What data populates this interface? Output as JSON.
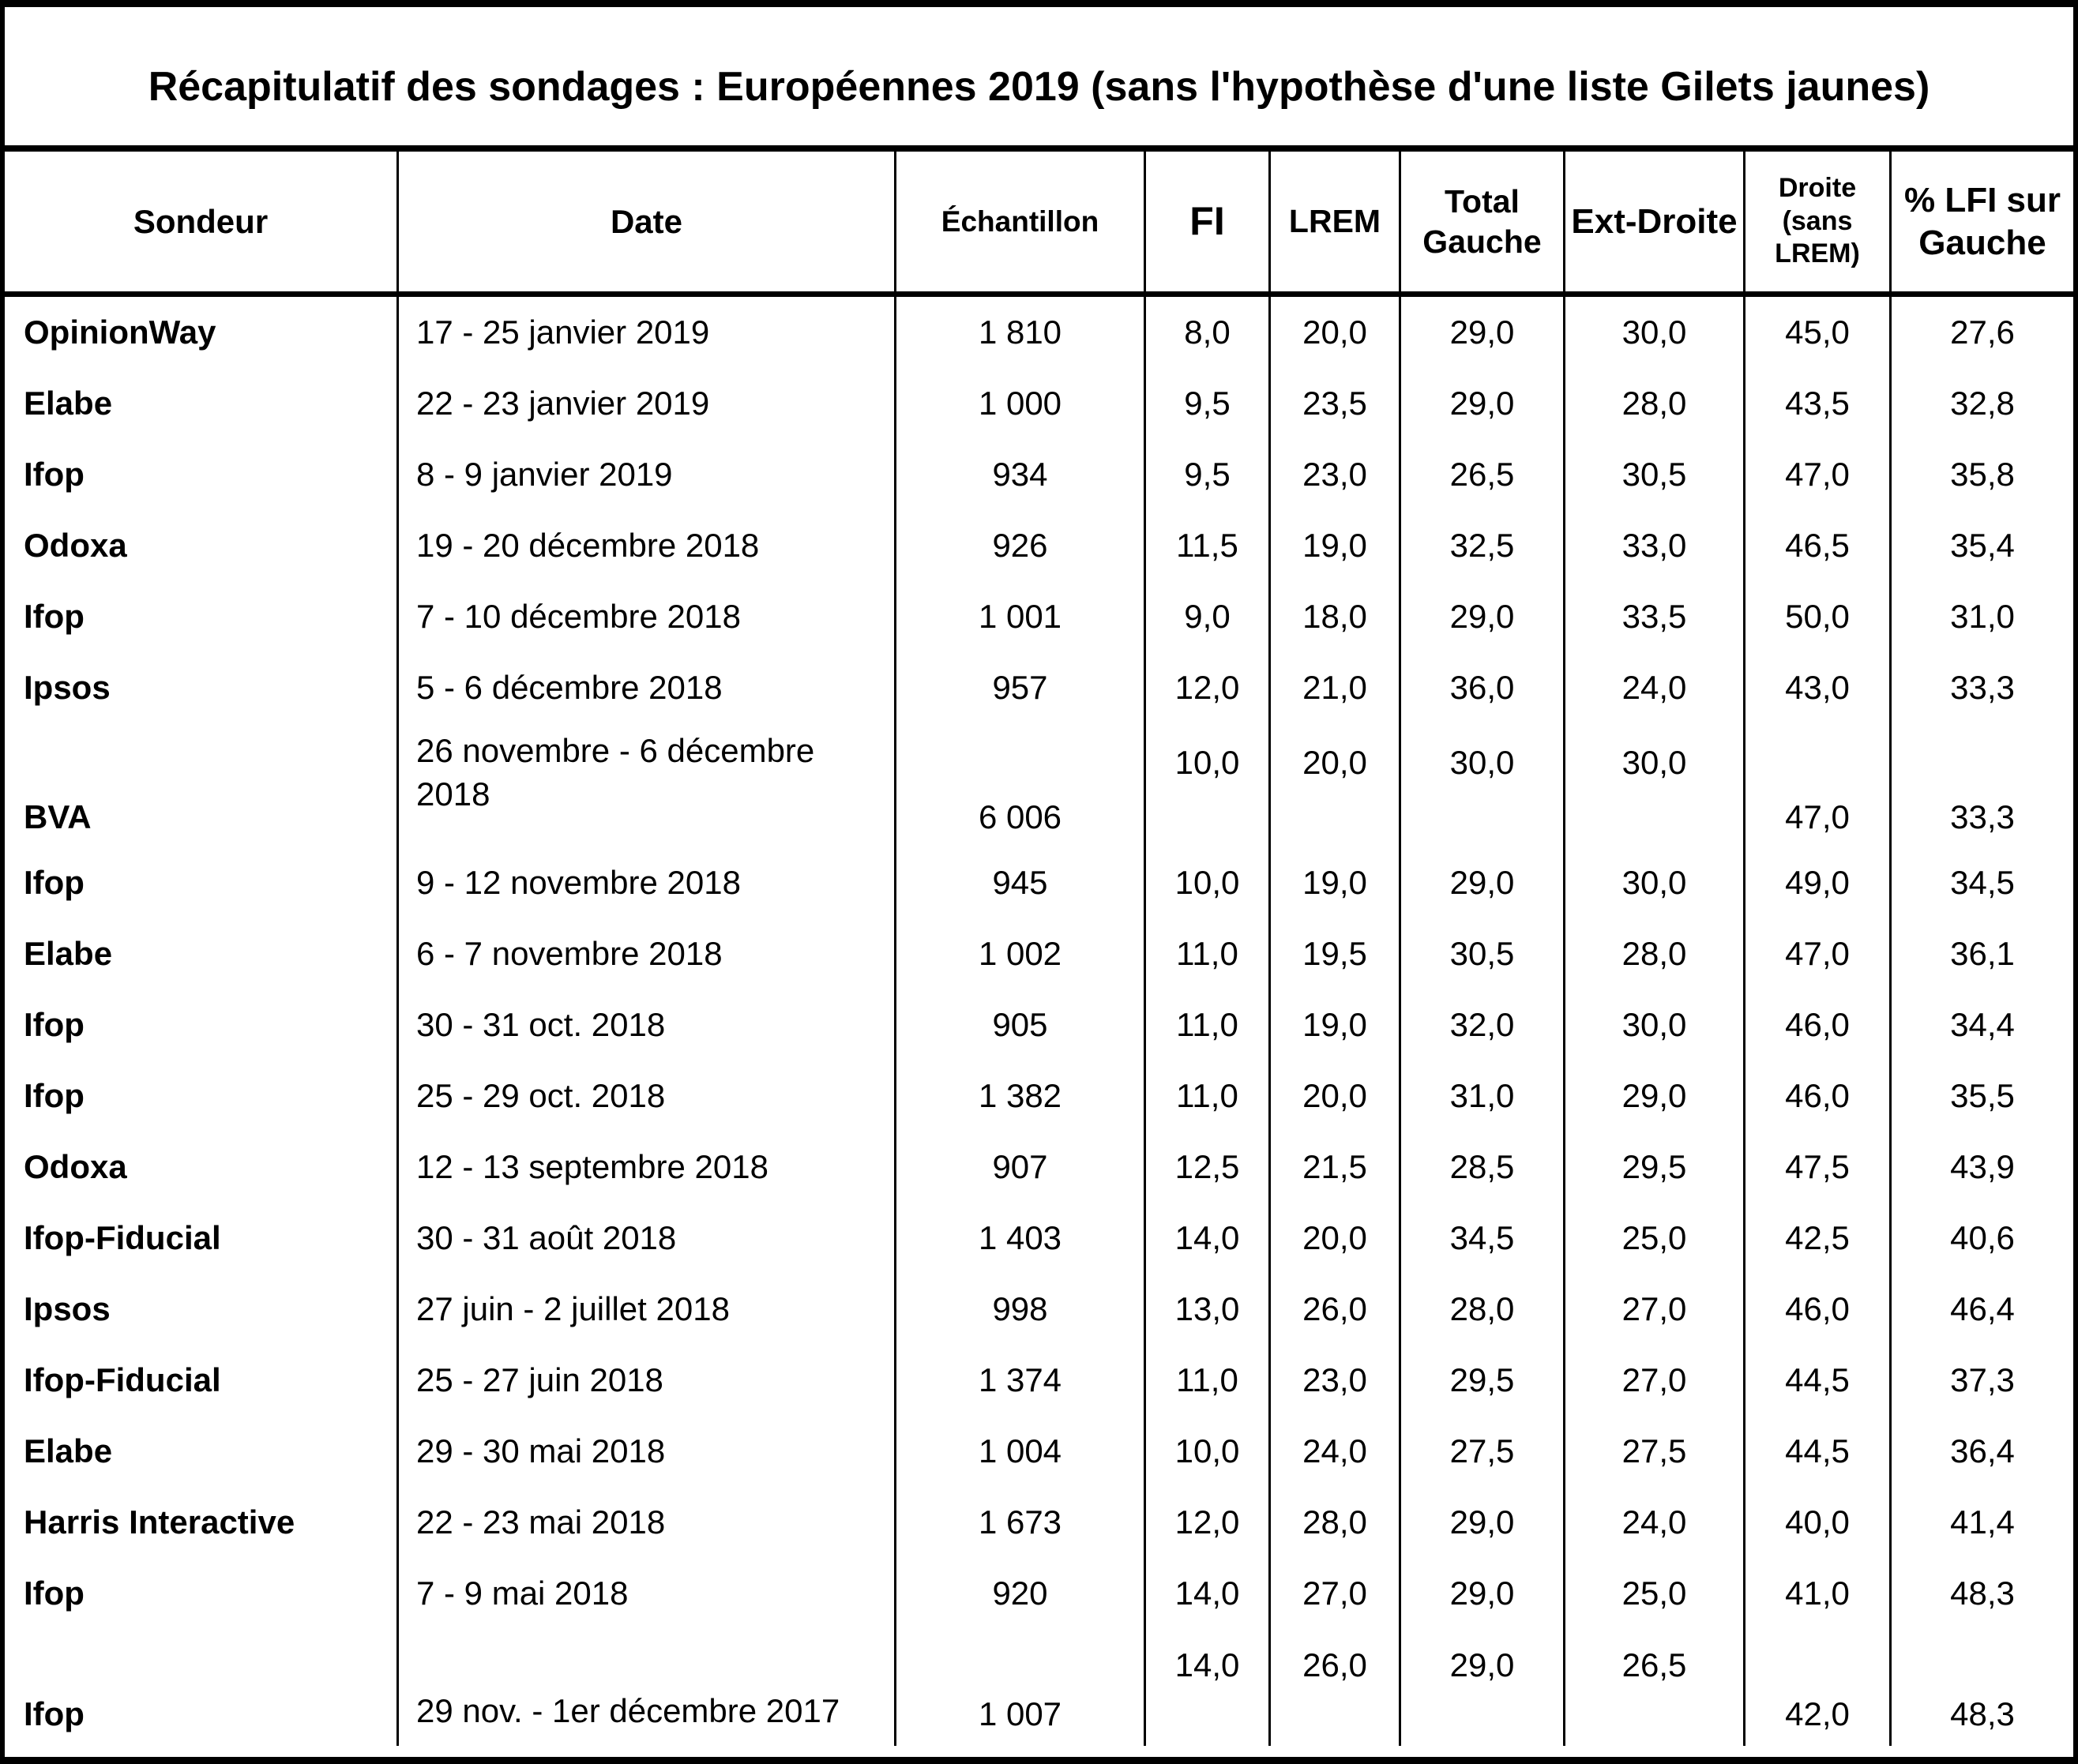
{
  "title": "Récapitulatif des sondages : Européennes 2019 (sans l'hypothèse d'une liste Gilets jaunes)",
  "colors": {
    "background": "#ffffff",
    "text": "#000000",
    "border": "#000000"
  },
  "table": {
    "columns": [
      {
        "key": "sondeur",
        "label": "Sondeur"
      },
      {
        "key": "date",
        "label": "Date"
      },
      {
        "key": "echantillon",
        "label": "Échantillon"
      },
      {
        "key": "fi",
        "label": "FI"
      },
      {
        "key": "lrem",
        "label": "LREM"
      },
      {
        "key": "total_gauche",
        "label": "Total\nGauche"
      },
      {
        "key": "ext_droite",
        "label": "Ext-Droite"
      },
      {
        "key": "droite_sans_lrem",
        "label": "Droite\n(sans\nLREM)"
      },
      {
        "key": "pct_lfi_sur_gauche",
        "label": "% LFI sur\nGauche"
      }
    ],
    "rows": [
      {
        "sondeur": "OpinionWay",
        "date": "17 - 25 janvier 2019",
        "echantillon": "1 810",
        "fi": "8,0",
        "lrem": "20,0",
        "total_gauche": "29,0",
        "ext_droite": "30,0",
        "droite_sans_lrem": "45,0",
        "pct_lfi_sur_gauche": "27,6"
      },
      {
        "sondeur": "Elabe",
        "date": "22 - 23 janvier 2019",
        "echantillon": "1 000",
        "fi": "9,5",
        "lrem": "23,5",
        "total_gauche": "29,0",
        "ext_droite": "28,0",
        "droite_sans_lrem": "43,5",
        "pct_lfi_sur_gauche": "32,8"
      },
      {
        "sondeur": "Ifop",
        "date": "8 - 9 janvier 2019",
        "echantillon": "934",
        "fi": "9,5",
        "lrem": "23,0",
        "total_gauche": "26,5",
        "ext_droite": "30,5",
        "droite_sans_lrem": "47,0",
        "pct_lfi_sur_gauche": "35,8"
      },
      {
        "sondeur": "Odoxa",
        "date": "19 - 20 décembre 2018",
        "echantillon": "926",
        "fi": "11,5",
        "lrem": "19,0",
        "total_gauche": "32,5",
        "ext_droite": "33,0",
        "droite_sans_lrem": "46,5",
        "pct_lfi_sur_gauche": "35,4"
      },
      {
        "sondeur": "Ifop",
        "date": "7 - 10 décembre 2018",
        "echantillon": "1 001",
        "fi": "9,0",
        "lrem": "18,0",
        "total_gauche": "29,0",
        "ext_droite": "33,5",
        "droite_sans_lrem": "50,0",
        "pct_lfi_sur_gauche": "31,0"
      },
      {
        "sondeur": "Ipsos",
        "date": "5 - 6 décembre 2018",
        "echantillon": "957",
        "fi": "12,0",
        "lrem": "21,0",
        "total_gauche": "36,0",
        "ext_droite": "24,0",
        "droite_sans_lrem": "43,0",
        "pct_lfi_sur_gauche": "33,3"
      },
      {
        "sondeur": "BVA",
        "date": "26 novembre - 6 décembre 2018",
        "echantillon": "6 006",
        "fi": "10,0",
        "lrem": "20,0",
        "total_gauche": "30,0",
        "ext_droite": "30,0",
        "droite_sans_lrem": "47,0",
        "pct_lfi_sur_gauche": "33,3",
        "variant": "tall-bva"
      },
      {
        "sondeur": "Ifop",
        "date": "9 - 12 novembre 2018",
        "echantillon": "945",
        "fi": "10,0",
        "lrem": "19,0",
        "total_gauche": "29,0",
        "ext_droite": "30,0",
        "droite_sans_lrem": "49,0",
        "pct_lfi_sur_gauche": "34,5"
      },
      {
        "sondeur": "Elabe",
        "date": "6 - 7 novembre 2018",
        "echantillon": "1 002",
        "fi": "11,0",
        "lrem": "19,5",
        "total_gauche": "30,5",
        "ext_droite": "28,0",
        "droite_sans_lrem": "47,0",
        "pct_lfi_sur_gauche": "36,1"
      },
      {
        "sondeur": "Ifop",
        "date": "30 - 31 oct. 2018",
        "echantillon": "905",
        "fi": "11,0",
        "lrem": "19,0",
        "total_gauche": "32,0",
        "ext_droite": "30,0",
        "droite_sans_lrem": "46,0",
        "pct_lfi_sur_gauche": "34,4"
      },
      {
        "sondeur": "Ifop",
        "date": "25 - 29 oct. 2018",
        "echantillon": "1 382",
        "fi": "11,0",
        "lrem": "20,0",
        "total_gauche": "31,0",
        "ext_droite": "29,0",
        "droite_sans_lrem": "46,0",
        "pct_lfi_sur_gauche": "35,5"
      },
      {
        "sondeur": "Odoxa",
        "date": "12 - 13 septembre 2018",
        "echantillon": "907",
        "fi": "12,5",
        "lrem": "21,5",
        "total_gauche": "28,5",
        "ext_droite": "29,5",
        "droite_sans_lrem": "47,5",
        "pct_lfi_sur_gauche": "43,9"
      },
      {
        "sondeur": "Ifop-Fiducial",
        "date": "30 - 31 août 2018",
        "echantillon": "1 403",
        "fi": "14,0",
        "lrem": "20,0",
        "total_gauche": "34,5",
        "ext_droite": "25,0",
        "droite_sans_lrem": "42,5",
        "pct_lfi_sur_gauche": "40,6"
      },
      {
        "sondeur": "Ipsos",
        "date": "27 juin - 2 juillet 2018",
        "echantillon": "998",
        "fi": "13,0",
        "lrem": "26,0",
        "total_gauche": "28,0",
        "ext_droite": "27,0",
        "droite_sans_lrem": "46,0",
        "pct_lfi_sur_gauche": "46,4"
      },
      {
        "sondeur": "Ifop-Fiducial",
        "date": "25 - 27 juin 2018",
        "echantillon": "1 374",
        "fi": "11,0",
        "lrem": "23,0",
        "total_gauche": "29,5",
        "ext_droite": "27,0",
        "droite_sans_lrem": "44,5",
        "pct_lfi_sur_gauche": "37,3"
      },
      {
        "sondeur": "Elabe",
        "date": "29 - 30 mai 2018",
        "echantillon": "1 004",
        "fi": "10,0",
        "lrem": "24,0",
        "total_gauche": "27,5",
        "ext_droite": "27,5",
        "droite_sans_lrem": "44,5",
        "pct_lfi_sur_gauche": "36,4"
      },
      {
        "sondeur": "Harris Interactive",
        "date": "22 - 23 mai 2018",
        "echantillon": "1 673",
        "fi": "12,0",
        "lrem": "28,0",
        "total_gauche": "29,0",
        "ext_droite": "24,0",
        "droite_sans_lrem": "40,0",
        "pct_lfi_sur_gauche": "41,4"
      },
      {
        "sondeur": "Ifop",
        "date": "7 - 9 mai 2018",
        "echantillon": "920",
        "fi": "14,0",
        "lrem": "27,0",
        "total_gauche": "29,0",
        "ext_droite": "25,0",
        "droite_sans_lrem": "41,0",
        "pct_lfi_sur_gauche": "48,3"
      },
      {
        "sondeur": "Ifop",
        "date": "29 nov. - 1er décembre 2017",
        "echantillon": "1 007",
        "fi": "14,0",
        "lrem": "26,0",
        "total_gauche": "29,0",
        "ext_droite": "26,5",
        "droite_sans_lrem": "42,0",
        "pct_lfi_sur_gauche": "48,3",
        "variant": "tall-last"
      }
    ]
  }
}
